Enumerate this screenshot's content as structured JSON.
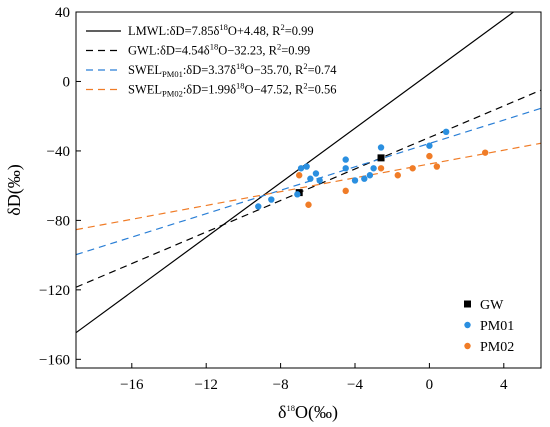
{
  "chart_data": {
    "type": "scatter",
    "xlabel": {
      "base": "δ",
      "sup": "18",
      "rest": "O(‰)"
    },
    "ylabel": "δD(‰)",
    "xlim": [
      -19,
      6
    ],
    "ylim": [
      -165,
      40
    ],
    "xticks": [
      -16,
      -12,
      -8,
      -4,
      0,
      4
    ],
    "yticks": [
      40,
      0,
      -40,
      -80,
      -120,
      -160
    ],
    "xtick_labels": [
      "−16",
      "−12",
      "−8",
      "−4",
      "0",
      "4"
    ],
    "ytick_labels": [
      "40",
      "0",
      "−40",
      "−80",
      "−120",
      "−160"
    ],
    "grid": false,
    "lines": [
      {
        "key": "LMWL",
        "slope": 7.85,
        "intercept": 4.48,
        "color": "#000000",
        "dash": "",
        "label": {
          "name": "LMWL",
          "sub": "",
          "pre": ":δD=7.85δ",
          "sup": "18",
          "post": "O+4.48, R",
          "r2sup": "2",
          "end": "=0.99"
        }
      },
      {
        "key": "GWL",
        "slope": 4.54,
        "intercept": -32.23,
        "color": "#000000",
        "dash": "7,5",
        "label": {
          "name": "GWL",
          "sub": "",
          "pre": ":δD=4.54δ",
          "sup": "18",
          "post": "O−32.23, R",
          "r2sup": "2",
          "end": "=0.99"
        }
      },
      {
        "key": "SWEL_PM01",
        "slope": 3.37,
        "intercept": -35.7,
        "color": "#2a7fd6",
        "dash": "7,5",
        "label": {
          "name": "SWEL",
          "sub": "PM01",
          "pre": ":δD=3.37δ",
          "sup": "18",
          "post": "O−35.70, R",
          "r2sup": "2",
          "end": "=0.74"
        }
      },
      {
        "key": "SWEL_PM02",
        "slope": 1.99,
        "intercept": -47.52,
        "color": "#f07c27",
        "dash": "7,5",
        "label": {
          "name": "SWEL",
          "sub": "PM02",
          "pre": ":δD=1.99δ",
          "sup": "18",
          "post": "O−47.52, R",
          "r2sup": "2",
          "end": "=0.56"
        }
      }
    ],
    "series": [
      {
        "name": "GW",
        "marker": "square",
        "color": "#000000",
        "points": [
          [
            -7.0,
            -64
          ],
          [
            -2.6,
            -44
          ]
        ]
      },
      {
        "name": "PM01",
        "marker": "circle",
        "color": "#2a8fe0",
        "points": [
          [
            -9.2,
            -72
          ],
          [
            -8.5,
            -68
          ],
          [
            -7.1,
            -65
          ],
          [
            -6.9,
            -50
          ],
          [
            -6.6,
            -49
          ],
          [
            -6.4,
            -56
          ],
          [
            -6.1,
            -53
          ],
          [
            -5.9,
            -57
          ],
          [
            -4.5,
            -45
          ],
          [
            -4.5,
            -50
          ],
          [
            -4.0,
            -57
          ],
          [
            -3.5,
            -56
          ],
          [
            -3.2,
            -54
          ],
          [
            -3.0,
            -50
          ],
          [
            -2.6,
            -38
          ],
          [
            0.0,
            -37
          ],
          [
            0.9,
            -29
          ]
        ]
      },
      {
        "name": "PM02",
        "marker": "circle",
        "color": "#f07c27",
        "points": [
          [
            -7.0,
            -54
          ],
          [
            -6.5,
            -71
          ],
          [
            -4.5,
            -63
          ],
          [
            -2.6,
            -50
          ],
          [
            -1.7,
            -54
          ],
          [
            -0.9,
            -50
          ],
          [
            0.4,
            -49
          ],
          [
            0.0,
            -43
          ],
          [
            3.0,
            -41
          ]
        ]
      }
    ],
    "legend_placement": "bottom-right",
    "lines_legend_placement": "top-left"
  }
}
